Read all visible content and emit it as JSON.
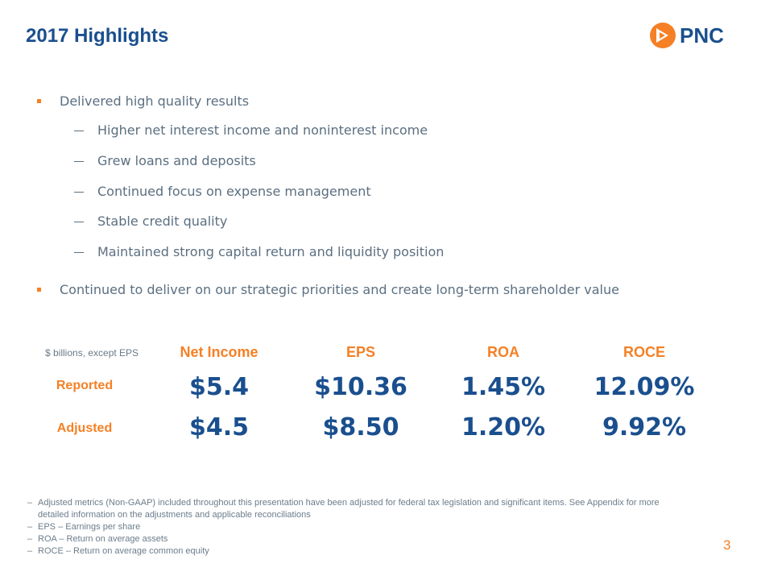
{
  "header": {
    "title": "2017 Highlights",
    "logo_text": "PNC",
    "brand_colors": {
      "navy": "#1a4f8e",
      "orange": "#f58025"
    }
  },
  "bullets": [
    {
      "text": "Delivered high quality results",
      "sub": [
        "Higher net interest income and noninterest income",
        "Grew loans and deposits",
        "Continued focus on expense management",
        "Stable credit quality",
        "Maintained strong capital return and liquidity position"
      ]
    },
    {
      "text": "Continued to deliver on our strategic priorities and create long-term shareholder value",
      "sub": []
    }
  ],
  "metrics": {
    "unit_note": "$ billions, except EPS",
    "columns": [
      "Net Income",
      "EPS",
      "ROA",
      "ROCE"
    ],
    "rows": [
      {
        "label": "Reported",
        "values": [
          "$5.4",
          "$10.36",
          "1.45%",
          "12.09%"
        ]
      },
      {
        "label": "Adjusted",
        "values": [
          "$4.5",
          "$8.50",
          "1.20%",
          "9.92%"
        ]
      }
    ]
  },
  "footnotes": [
    {
      "dash": "–",
      "lines": [
        "Adjusted metrics (Non-GAAP) included throughout this presentation have been adjusted for federal tax legislation and significant items.  See Appendix for more",
        "detailed information on the adjustments and applicable reconciliations"
      ]
    },
    {
      "dash": "–",
      "lines": [
        "EPS – Earnings per share"
      ]
    },
    {
      "dash": "–",
      "lines": [
        "ROA – Return on average assets"
      ]
    },
    {
      "dash": "–",
      "lines": [
        "ROCE – Return on average common equity"
      ]
    }
  ],
  "page_number": "3"
}
